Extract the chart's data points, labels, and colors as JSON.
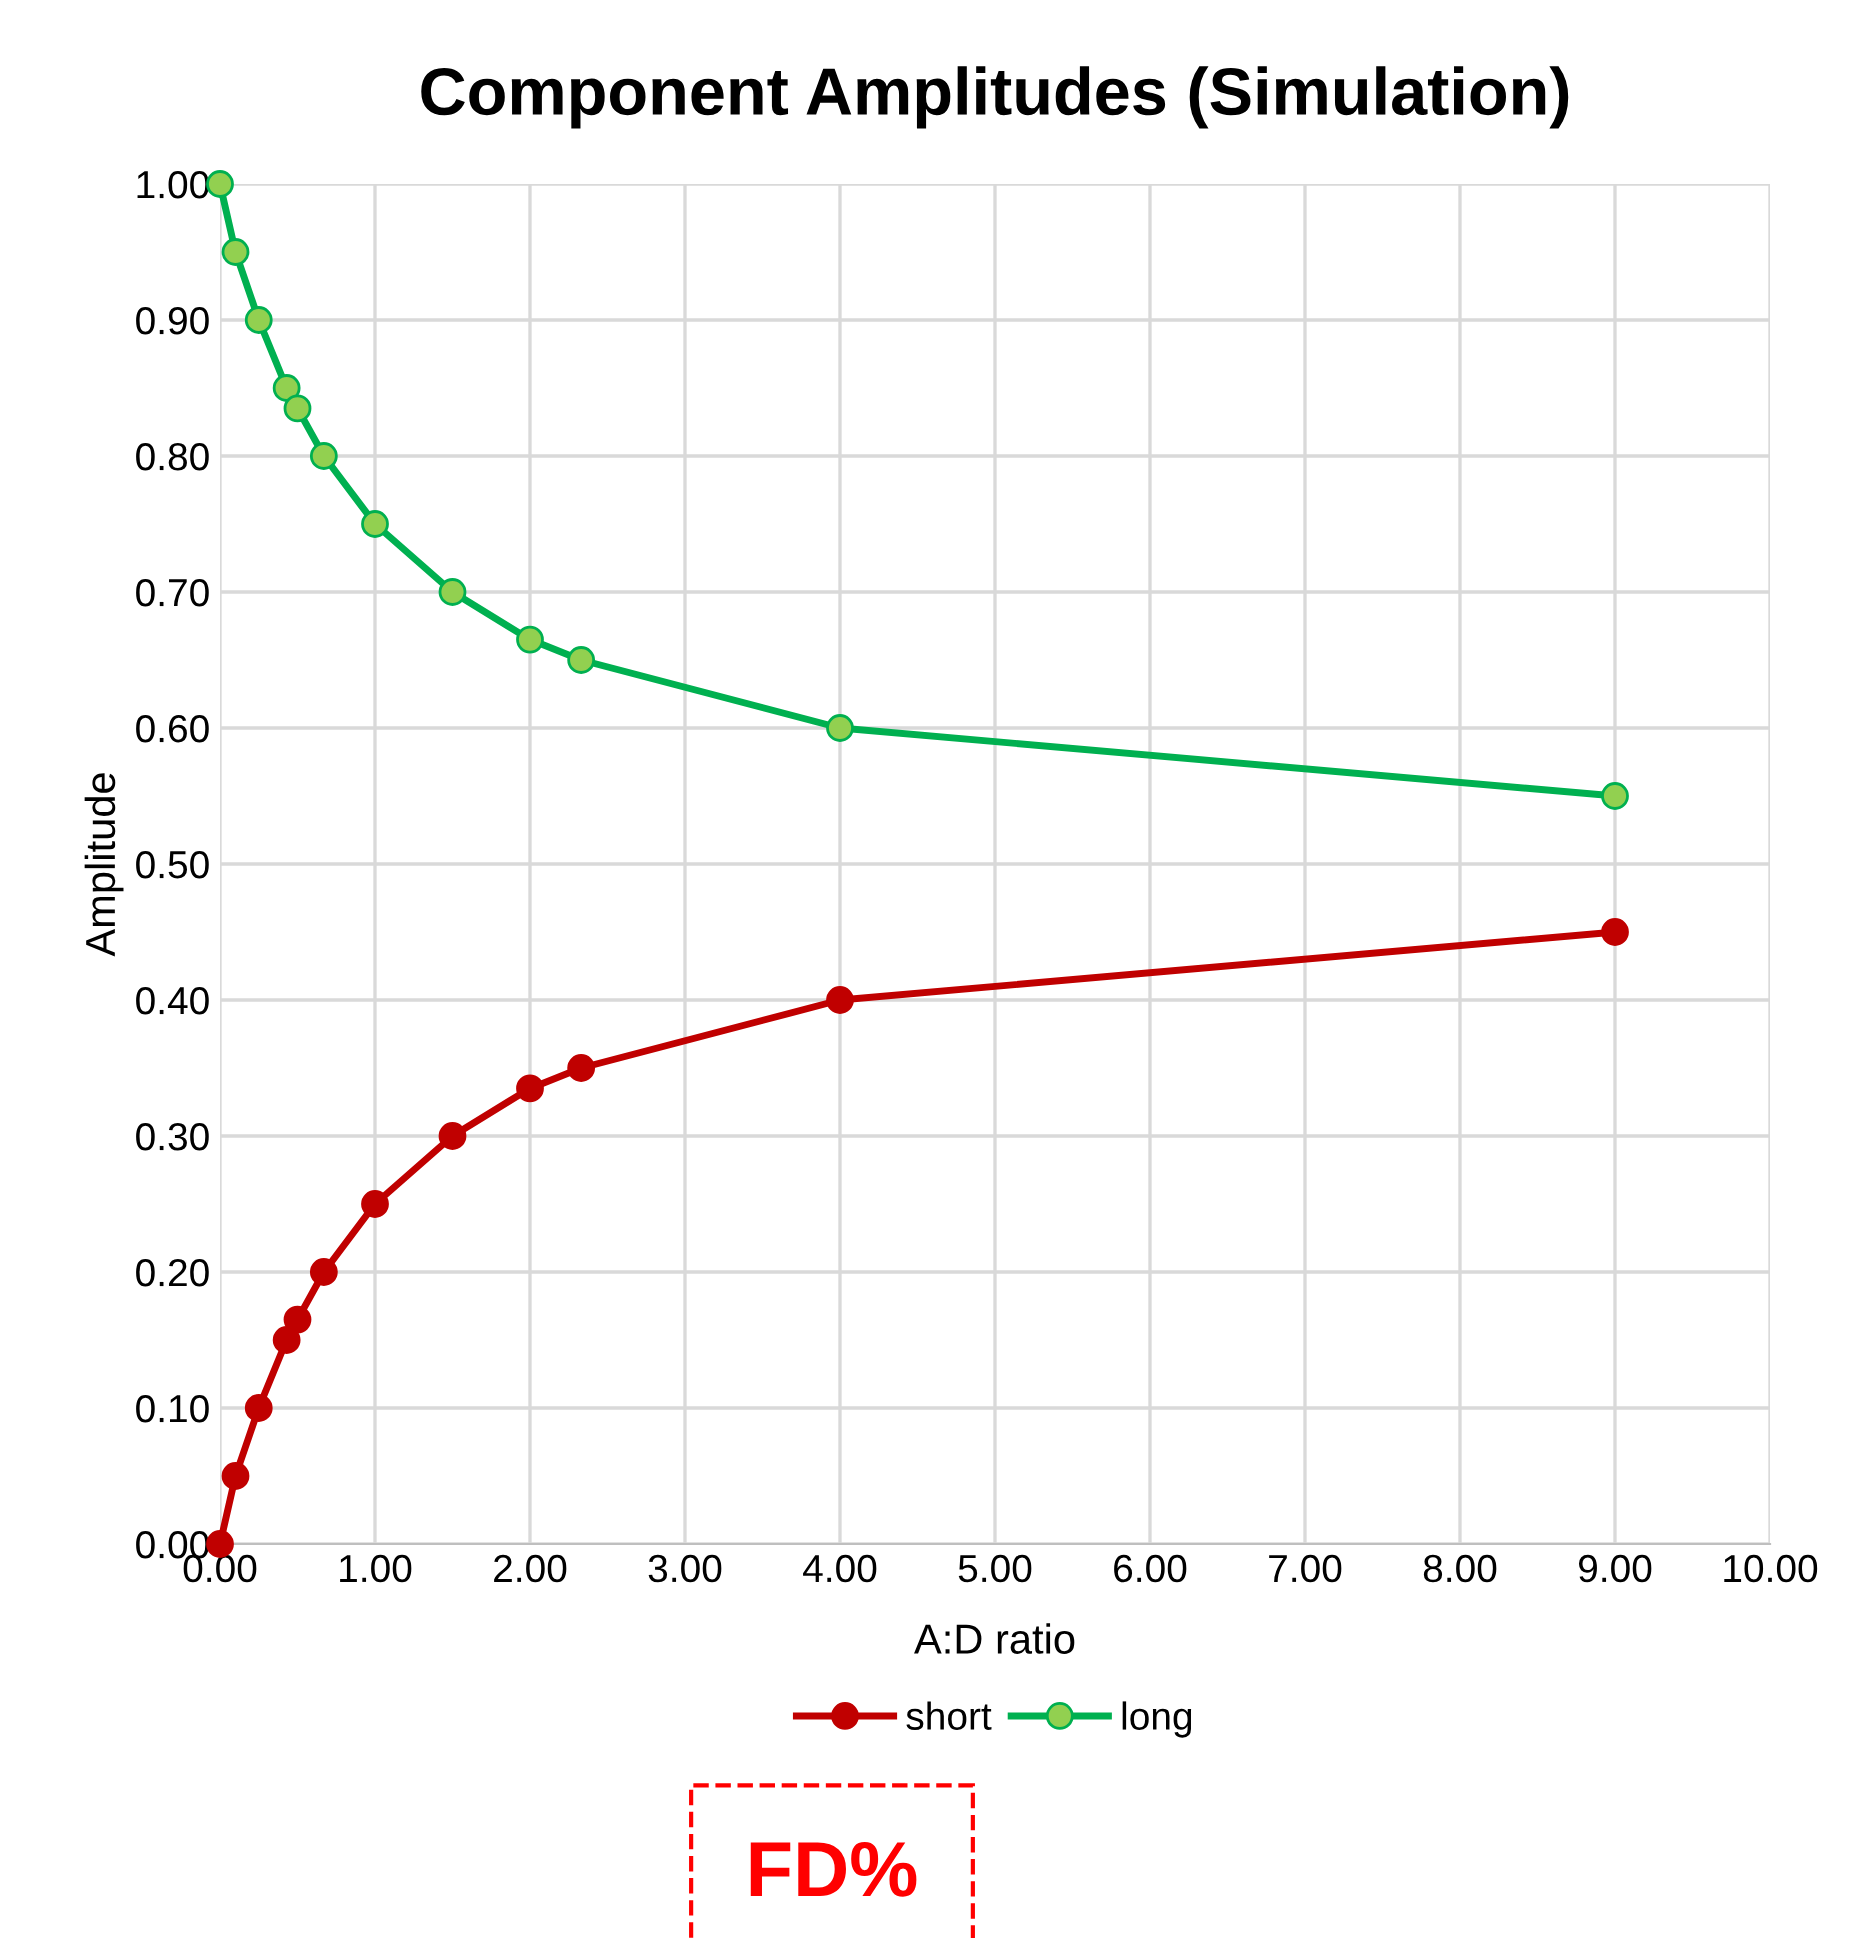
{
  "chart_data": {
    "type": "line",
    "title": "Component Amplitudes (Simulation)",
    "xlabel": "A:D ratio",
    "ylabel": "Amplitude",
    "x": [
      0,
      0.1,
      0.25,
      0.43,
      0.5,
      0.67,
      1,
      1.5,
      2.0,
      2.33,
      4,
      9
    ],
    "series": [
      {
        "name": "short",
        "color": "#c00000",
        "values": [
          0,
          0.05,
          0.1,
          0.15,
          0.165,
          0.2,
          0.25,
          0.3,
          0.335,
          0.35,
          0.4,
          0.45
        ]
      },
      {
        "name": "long",
        "color": "#00b050",
        "values": [
          1,
          0.95,
          0.9,
          0.85,
          0.835,
          0.8,
          0.75,
          0.7,
          0.665,
          0.65,
          0.6,
          0.55
        ]
      }
    ],
    "xlim": [
      0,
      10
    ],
    "xticks": [
      {
        "value": 0,
        "label": "0.00"
      },
      {
        "value": 1,
        "label": "1.00"
      },
      {
        "value": 2,
        "label": "2.00"
      },
      {
        "value": 3,
        "label": "3.00"
      },
      {
        "value": 4,
        "label": "4.00"
      },
      {
        "value": 5,
        "label": "5.00"
      },
      {
        "value": 6,
        "label": "6.00"
      },
      {
        "value": 7,
        "label": "7.00"
      },
      {
        "value": 8,
        "label": "8.00"
      },
      {
        "value": 9,
        "label": "9.00"
      },
      {
        "value": 10,
        "label": "10.00"
      }
    ],
    "ylim": [
      0,
      1
    ],
    "yticks": [
      {
        "value": 0,
        "label": "0.00"
      },
      {
        "value": 0.1,
        "label": "0.10"
      },
      {
        "value": 0.2,
        "label": "0.20"
      },
      {
        "value": 0.3,
        "label": "0.30"
      },
      {
        "value": 0.4,
        "label": "0.40"
      },
      {
        "value": 0.5,
        "label": "0.50"
      },
      {
        "value": 0.6,
        "label": "0.60"
      },
      {
        "value": 0.7,
        "label": "0.70"
      },
      {
        "value": 0.8,
        "label": "0.80"
      },
      {
        "value": 0.9,
        "label": "0.90"
      },
      {
        "value": 1,
        "label": "1.00"
      }
    ],
    "grid": true,
    "legend": "bottom",
    "marker": "circle",
    "line_style": "solid",
    "annotations": [
      "FD%"
    ]
  }
}
